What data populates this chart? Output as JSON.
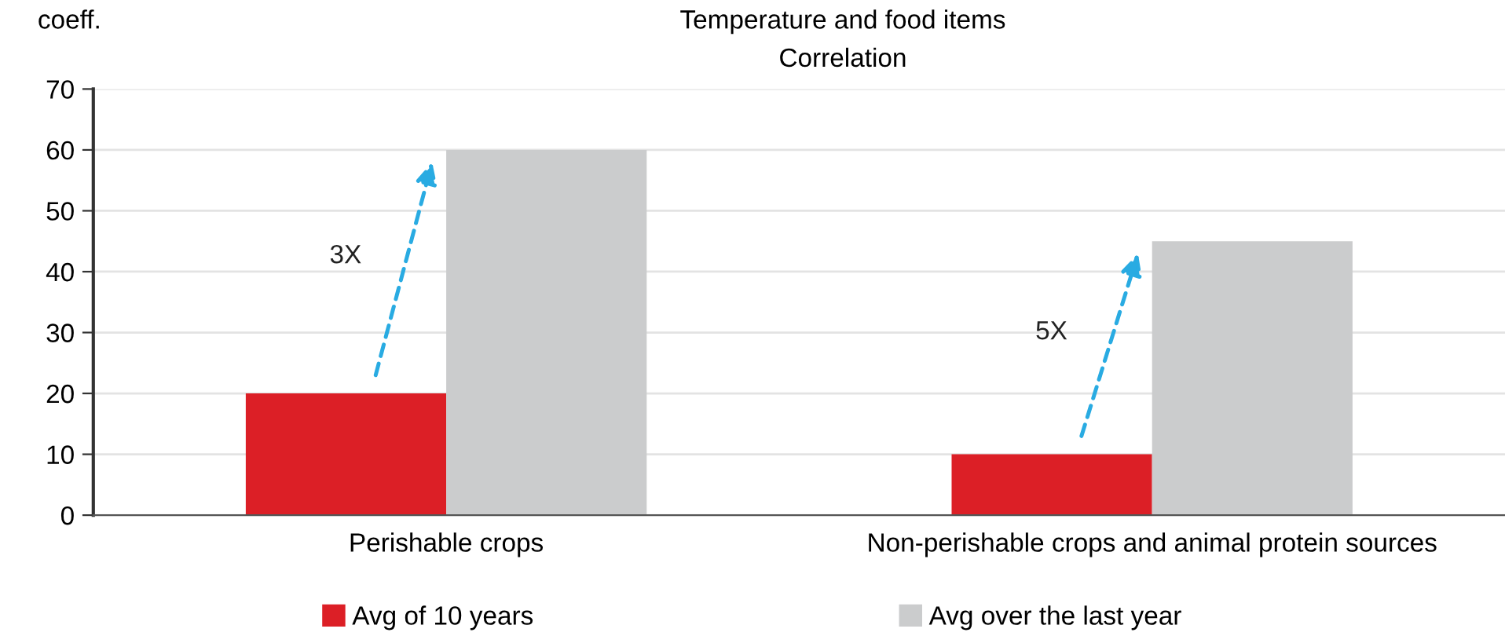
{
  "chart_data": {
    "type": "bar",
    "title": "Temperature and food items",
    "subtitle": "Correlation",
    "ylabel": "coeff.",
    "categories": [
      "Perishable crops",
      "Non-perishable crops and animal protein sources"
    ],
    "series": [
      {
        "name": "Avg of 10 years",
        "color": "#dc1f26",
        "values": [
          20,
          10
        ]
      },
      {
        "name": "Avg over the last year",
        "color": "#cbcccd",
        "values": [
          60,
          45
        ]
      }
    ],
    "annotations": [
      "3X",
      "5X"
    ],
    "ylim": [
      0,
      70
    ],
    "yticks": [
      0,
      10,
      20,
      30,
      40,
      50,
      60,
      70
    ],
    "grid": "y",
    "legend": "bottom"
  }
}
